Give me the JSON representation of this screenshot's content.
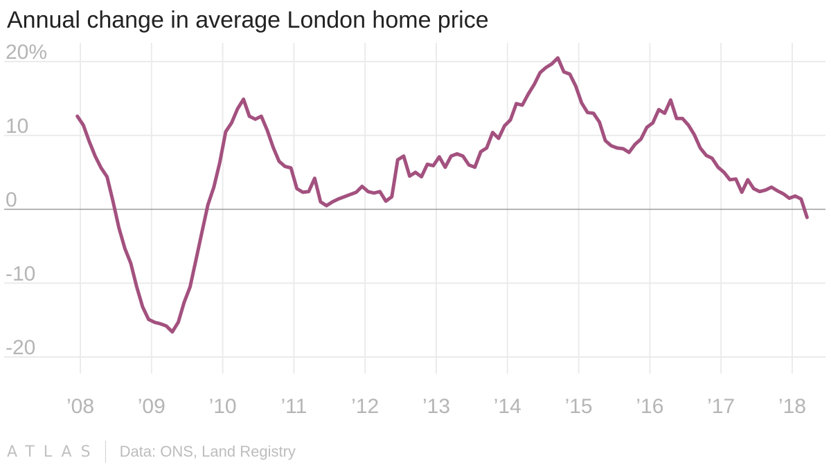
{
  "title": "Annual change in average London home price",
  "footer": {
    "logo": "ATLAS",
    "source": "Data: ONS, Land Registry"
  },
  "colors": {
    "line": "#a3517f",
    "grid": "#ebebeb",
    "zero": "#9a9a9a",
    "tick": "#b5b5b5"
  },
  "chart_data": {
    "type": "line",
    "title": "Annual change in average London home price",
    "xlabel": "",
    "ylabel": "",
    "ylim": [
      -22,
      22
    ],
    "xlim": [
      2007.95,
      2018.2
    ],
    "y_ticks": [
      {
        "value": 20,
        "label": "20%"
      },
      {
        "value": 10,
        "label": "10"
      },
      {
        "value": 0,
        "label": "0"
      },
      {
        "value": -10,
        "label": "-10"
      },
      {
        "value": -20,
        "label": "-20"
      }
    ],
    "x_ticks": [
      {
        "value": 2008,
        "label": "’08"
      },
      {
        "value": 2009,
        "label": "’09"
      },
      {
        "value": 2010,
        "label": "’10"
      },
      {
        "value": 2011,
        "label": "’11"
      },
      {
        "value": 2012,
        "label": "’12"
      },
      {
        "value": 2013,
        "label": "’13"
      },
      {
        "value": 2014,
        "label": "’14"
      },
      {
        "value": 2015,
        "label": "’15"
      },
      {
        "value": 2016,
        "label": "’16"
      },
      {
        "value": 2017,
        "label": "’17"
      },
      {
        "value": 2018,
        "label": "’18"
      }
    ],
    "series": [
      {
        "name": "Annual change in average London home price",
        "start": [
          2007,
          12
        ],
        "values": [
          12.6,
          11.4,
          9.2,
          7.2,
          5.6,
          4.4,
          1.1,
          -2.5,
          -5.3,
          -7.3,
          -10.5,
          -13.2,
          -14.9,
          -15.3,
          -15.5,
          -15.8,
          -16.6,
          -15.3,
          -12.6,
          -10.5,
          -6.8,
          -3.1,
          0.6,
          3.0,
          6.3,
          10.5,
          11.7,
          13.6,
          14.9,
          12.6,
          12.2,
          12.6,
          10.7,
          8.4,
          6.5,
          5.8,
          5.6,
          2.8,
          2.3,
          2.4,
          4.2,
          1.0,
          0.5,
          1.0,
          1.4,
          1.7,
          2.0,
          2.3,
          3.1,
          2.4,
          2.2,
          2.4,
          1.1,
          1.7,
          6.7,
          7.2,
          4.5,
          5.0,
          4.4,
          6.1,
          5.9,
          7.1,
          5.7,
          7.2,
          7.5,
          7.2,
          6.0,
          5.7,
          7.8,
          8.3,
          10.4,
          9.6,
          11.3,
          12.1,
          14.3,
          14.1,
          15.6,
          16.9,
          18.5,
          19.2,
          19.7,
          20.5,
          18.6,
          18.3,
          16.7,
          14.4,
          13.1,
          13.0,
          11.8,
          9.3,
          8.6,
          8.3,
          8.2,
          7.7,
          8.8,
          9.5,
          11.1,
          11.7,
          13.5,
          13.0,
          14.8,
          12.3,
          12.3,
          11.4,
          10.1,
          8.3,
          7.3,
          6.9,
          5.7,
          5.0,
          4.0,
          4.1,
          2.3,
          4.0,
          2.8,
          2.4,
          2.6,
          3.0,
          2.5,
          2.1,
          1.5,
          1.8,
          1.4,
          -1.1
        ]
      }
    ]
  }
}
